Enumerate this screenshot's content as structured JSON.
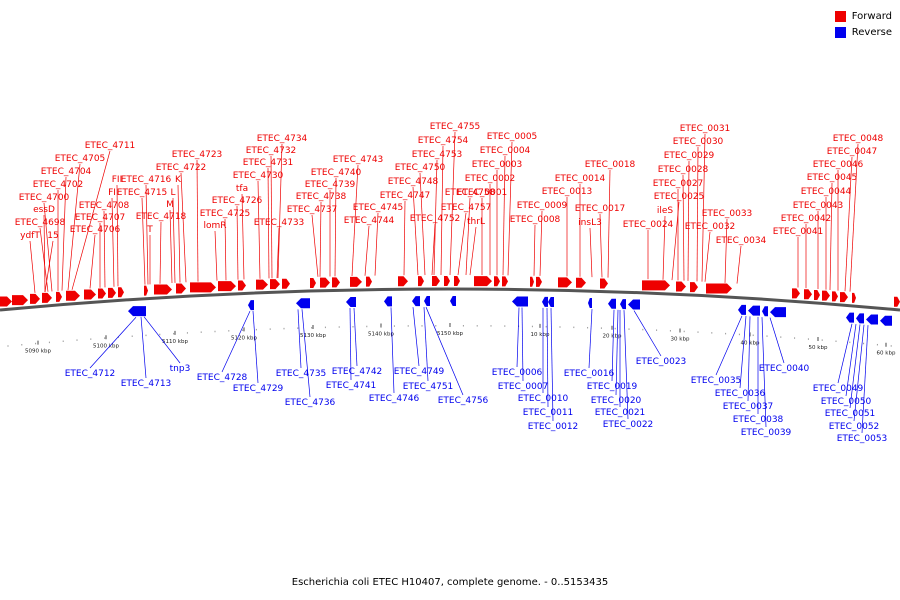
{
  "colors": {
    "forward": "#ee0000",
    "reverse": "#0000ee",
    "backbone": "#555555"
  },
  "legend": [
    {
      "label": "Forward",
      "color": "#ee0000"
    },
    {
      "label": "Reverse",
      "color": "#0000ee"
    }
  ],
  "caption": "Escherichia coli ETEC H10407, complete genome. - 0..5153435",
  "scale_ticks": [
    "5090 kbp",
    "5100 kbp",
    "5110 kbp",
    "5120 kbp",
    "5130 kbp",
    "5140 kbp",
    "5150 kbp",
    "10 kbp",
    "20 kbp",
    "30 kbp",
    "40 kbp",
    "50 kbp",
    "60 kbp"
  ],
  "forward_labels": [
    "ETEC_4711",
    "ETEC_4705",
    "ETEC_4704",
    "ETEC_4702",
    "ETEC_4700",
    "ETEC_4698",
    "essD",
    "ydfT",
    "15",
    "FII",
    "FI",
    "ETEC_4716",
    "ETEC_4715",
    "ETEC_4708",
    "ETEC_4707",
    "ETEC_4706",
    "K",
    "L",
    "M",
    "ETEC_4718",
    "T",
    "ETEC_4723",
    "ETEC_4722",
    "ETEC_4726",
    "ETEC_4725",
    "lomR",
    "tfa",
    "ETEC_4734",
    "ETEC_4732",
    "ETEC_4731",
    "ETEC_4730",
    "ETEC_4733",
    "ETEC_4743",
    "ETEC_4740",
    "ETEC_4739",
    "ETEC_4738",
    "ETEC_4737",
    "ETEC_4745",
    "ETEC_4744",
    "ETEC_4755",
    "ETEC_4754",
    "ETEC_4753",
    "ETEC_4750",
    "ETEC_4748",
    "ETEC_4747",
    "ETEC_4752",
    "ETEC_4758",
    "ETEC_4757",
    "thrL",
    "ETEC_0005",
    "ETEC_0004",
    "ETEC_0003",
    "ETEC_0002",
    "ETEC_0001",
    "ETEC_0009",
    "ETEC_0008",
    "ETEC_0018",
    "ETEC_0014",
    "ETEC_0013",
    "ETEC_0017",
    "insL3",
    "ETEC_0031",
    "ETEC_0030",
    "ETEC_0029",
    "ETEC_0028",
    "ETEC_0027",
    "ETEC_0025",
    "ileS",
    "ETEC_0024",
    "ETEC_0033",
    "ETEC_0032",
    "ETEC_0034",
    "ETEC_0048",
    "ETEC_0047",
    "ETEC_0046",
    "ETEC_0045",
    "ETEC_0044",
    "ETEC_0043",
    "ETEC_0042",
    "ETEC_0041"
  ],
  "reverse_labels": [
    "ETEC_4712",
    "ETEC_4713",
    "tnp3",
    "ETEC_4728",
    "ETEC_4729",
    "ETEC_4735",
    "ETEC_4736",
    "ETEC_4742",
    "ETEC_4741",
    "ETEC_4749",
    "ETEC_4746",
    "ETEC_4751",
    "ETEC_4756",
    "ETEC_0006",
    "ETEC_0007",
    "ETEC_0010",
    "ETEC_0011",
    "ETEC_0012",
    "ETEC_0016",
    "ETEC_0019",
    "ETEC_0020",
    "ETEC_0021",
    "ETEC_0022",
    "ETEC_0023",
    "ETEC_0035",
    "ETEC_0036",
    "ETEC_0037",
    "ETEC_0038",
    "ETEC_0039",
    "ETEC_0040",
    "ETEC_0049",
    "ETEC_0050",
    "ETEC_0051",
    "ETEC_0052",
    "ETEC_0053"
  ]
}
